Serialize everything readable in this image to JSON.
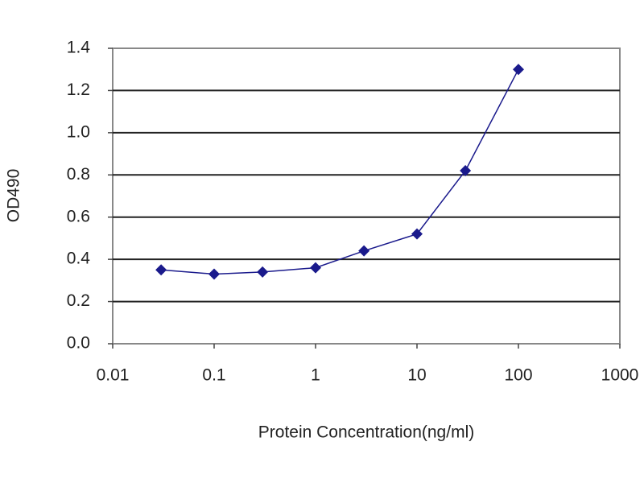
{
  "chart_data": {
    "type": "scatter",
    "x_label": "Protein Concentration(ng/ml)",
    "y_label": "OD490",
    "x_log": true,
    "grid": true,
    "x": [
      0.03,
      0.1,
      0.3,
      1,
      3,
      10,
      30,
      100
    ],
    "series": [
      {
        "color": "#1a1a8c",
        "values": [
          0.35,
          0.33,
          0.34,
          0.36,
          0.44,
          0.52,
          0.82,
          1.3
        ]
      }
    ],
    "xlim": [
      0.01,
      1000
    ],
    "xticks": [
      0.01,
      0.1,
      1,
      10,
      100,
      1000
    ],
    "ylim": [
      0,
      1.4
    ],
    "yticks": [
      {
        "value": 0,
        "label": "0.0"
      },
      0.2,
      0.4,
      0.6,
      0.8,
      {
        "value": 1,
        "label": "1.0"
      },
      1.2,
      1.4
    ]
  }
}
